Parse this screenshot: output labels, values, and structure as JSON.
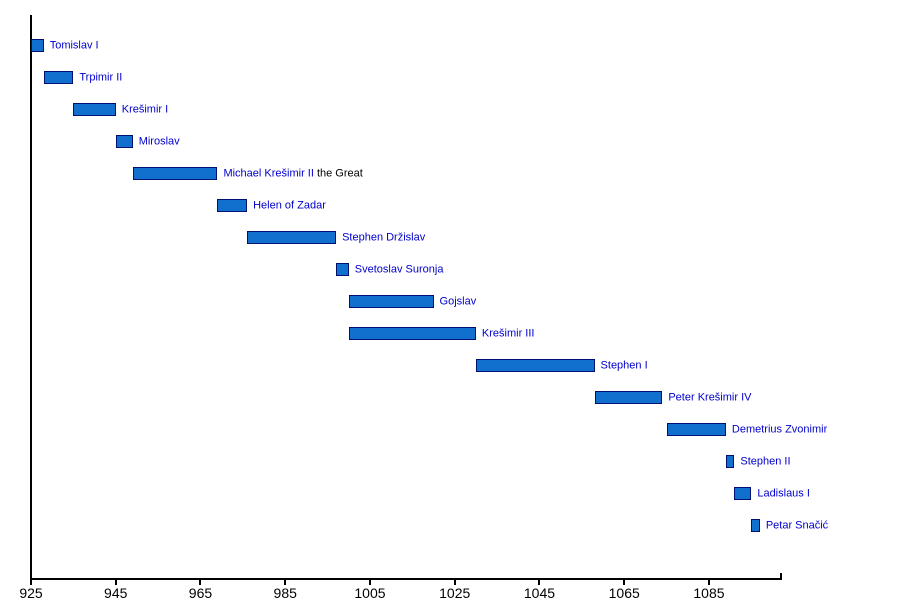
{
  "chart_data": {
    "type": "bar",
    "subtype": "horizontal-timeline-gantt",
    "title": "",
    "xlabel": "",
    "ylabel": "",
    "xlim": [
      925,
      1102
    ],
    "x_ticks": [
      925,
      945,
      965,
      985,
      1005,
      1025,
      1045,
      1065,
      1085
    ],
    "grid": false,
    "legend": false,
    "colors": {
      "bar_fill": "#1170CD",
      "bar_border": "#001070",
      "label_text": "#0000CC",
      "suffix_text": "#000000",
      "axis": "#000000"
    },
    "series": [
      {
        "label": "Tomislav I",
        "start": 925,
        "end": 928
      },
      {
        "label": "Trpimir II",
        "start": 928,
        "end": 935
      },
      {
        "label": "Krešimir I",
        "start": 935,
        "end": 945
      },
      {
        "label": "Miroslav",
        "start": 945,
        "end": 949
      },
      {
        "label": "Michael Krešimir II",
        "suffix": " the Great",
        "start": 949,
        "end": 969
      },
      {
        "label": "Helen of Zadar",
        "start": 969,
        "end": 976
      },
      {
        "label": "Stephen Držislav",
        "start": 976,
        "end": 997
      },
      {
        "label": "Svetoslav Suronja",
        "start": 997,
        "end": 1000
      },
      {
        "label": "Gojslav",
        "start": 1000,
        "end": 1020
      },
      {
        "label": "Krešimir III",
        "start": 1000,
        "end": 1030
      },
      {
        "label": "Stephen I",
        "start": 1030,
        "end": 1058
      },
      {
        "label": "Peter Krešimir IV",
        "start": 1058,
        "end": 1074
      },
      {
        "label": "Demetrius Zvonimir",
        "start": 1075,
        "end": 1089
      },
      {
        "label": "Stephen II",
        "start": 1089,
        "end": 1091
      },
      {
        "label": "Ladislaus I",
        "start": 1091,
        "end": 1095
      },
      {
        "label": "Petar Snačić",
        "start": 1095,
        "end": 1097
      }
    ]
  }
}
